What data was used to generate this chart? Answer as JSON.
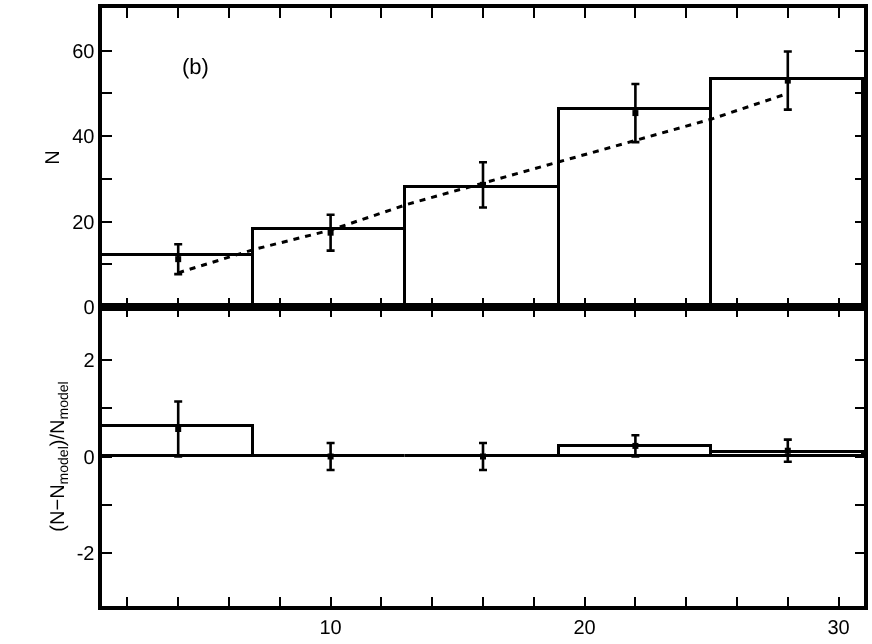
{
  "chart_data": [
    {
      "type": "histogram",
      "ylabel": "N",
      "annotations": [
        "(b)"
      ],
      "xlim": [
        1,
        31
      ],
      "ylim": [
        0,
        70
      ],
      "xticks": [
        {
          "value": 2,
          "label": null
        },
        {
          "value": 4,
          "label": null
        },
        {
          "value": 6,
          "label": null
        },
        {
          "value": 8,
          "label": null
        },
        {
          "value": 10,
          "label": null
        },
        {
          "value": 12,
          "label": null
        },
        {
          "value": 14,
          "label": null
        },
        {
          "value": 16,
          "label": null
        },
        {
          "value": 18,
          "label": null
        },
        {
          "value": 20,
          "label": null
        },
        {
          "value": 22,
          "label": null
        },
        {
          "value": 24,
          "label": null
        },
        {
          "value": 26,
          "label": null
        },
        {
          "value": 28,
          "label": null
        },
        {
          "value": 30,
          "label": null
        }
      ],
      "yticks": [
        0,
        {
          "value": 10,
          "label": null
        },
        20,
        {
          "value": 30,
          "label": null
        },
        40,
        {
          "value": 50,
          "label": null
        },
        60
      ],
      "tick_labels": "y",
      "series": [
        {
          "color": "#000000",
          "bins": [
            1,
            7,
            13,
            19,
            25,
            31
          ],
          "values": [
            12,
            18,
            28,
            46,
            53
          ]
        },
        {
          "type": "line",
          "color": "#000000",
          "line_style": "dotted",
          "marker": "none",
          "x": [
            4,
            7,
            10,
            13,
            16,
            19,
            22,
            25,
            28
          ],
          "values": [
            8,
            13.5,
            18,
            24,
            29,
            34,
            39,
            44,
            50
          ]
        },
        {
          "type": "scatter",
          "color": "#000000",
          "marker": "square",
          "x": [
            4,
            10,
            16,
            22,
            28
          ],
          "values": [
            11.2,
            17.4,
            28.6,
            45.4,
            53
          ],
          "errors": [
            3.5,
            4.2,
            5.3,
            6.8,
            6.8
          ]
        }
      ]
    },
    {
      "type": "histogram",
      "ylabel": "(N−N$_{model}$)/N$_{model}$",
      "xlim": [
        1,
        31
      ],
      "ylim": [
        -3.1,
        3.1
      ],
      "xticks": [
        {
          "value": 2,
          "label": null
        },
        {
          "value": 4,
          "label": null
        },
        {
          "value": 6,
          "label": null
        },
        {
          "value": 8,
          "label": null
        },
        10,
        {
          "value": 12,
          "label": null
        },
        {
          "value": 14,
          "label": null
        },
        {
          "value": 16,
          "label": null
        },
        {
          "value": 18,
          "label": null
        },
        20,
        {
          "value": 22,
          "label": null
        },
        {
          "value": 24,
          "label": null
        },
        {
          "value": 26,
          "label": null
        },
        {
          "value": 28,
          "label": null
        },
        30
      ],
      "yticks": [
        -2,
        {
          "value": -1,
          "label": null
        },
        0,
        {
          "value": 1,
          "label": null
        },
        2
      ],
      "series": [
        {
          "color": "#000000",
          "bins": [
            1,
            7,
            13,
            19,
            25,
            31
          ],
          "values": [
            0.62,
            0,
            0,
            0.2,
            0.06
          ]
        },
        {
          "type": "scatter",
          "color": "#000000",
          "marker": "square",
          "x": [
            4,
            10,
            16,
            22,
            28
          ],
          "values": [
            0.57,
            0,
            0,
            0.22,
            0.12
          ],
          "errors": [
            0.57,
            0.28,
            0.28,
            0.22,
            0.23
          ]
        }
      ]
    }
  ]
}
